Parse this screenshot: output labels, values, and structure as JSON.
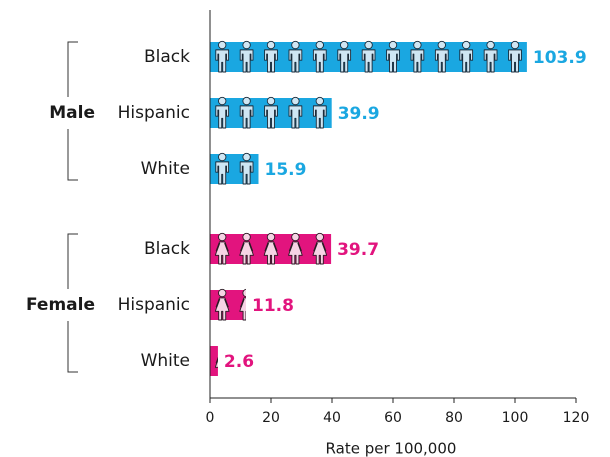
{
  "chart_data": {
    "type": "bar",
    "orientation": "horizontal",
    "icon_unit": 8,
    "xlabel": "Rate per 100,000",
    "xlim": [
      0,
      120
    ],
    "xticks": [
      "0",
      "20",
      "40",
      "60",
      "80",
      "100",
      "120"
    ],
    "grid": false,
    "groups": [
      {
        "name": "Male",
        "color": "#1aa7e1",
        "icon": "male-person-icon",
        "bars": [
          {
            "category": "Black",
            "value": 103.9,
            "label": "103.9"
          },
          {
            "category": "Hispanic",
            "value": 39.9,
            "label": "39.9"
          },
          {
            "category": "White",
            "value": 15.9,
            "label": "15.9"
          }
        ]
      },
      {
        "name": "Female",
        "color": "#e2147e",
        "icon": "female-person-icon",
        "bars": [
          {
            "category": "Black",
            "value": 39.7,
            "label": "39.7"
          },
          {
            "category": "Hispanic",
            "value": 11.8,
            "label": "11.8"
          },
          {
            "category": "White",
            "value": 2.6,
            "label": "2.6"
          }
        ]
      }
    ]
  }
}
